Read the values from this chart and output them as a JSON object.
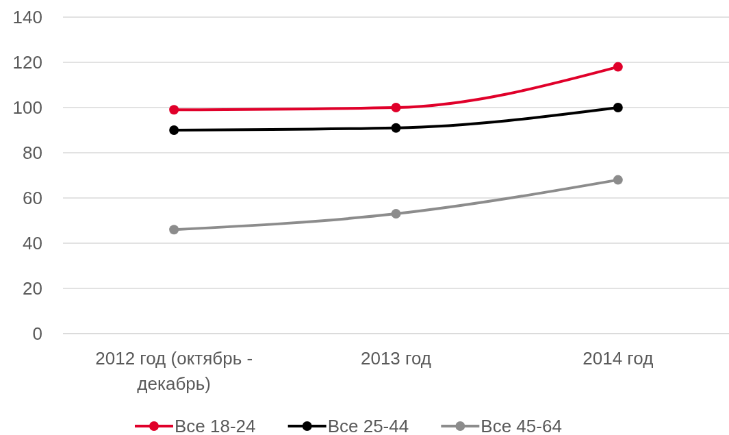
{
  "chart_data": {
    "type": "line",
    "categories": [
      "2012 год (октябрь - декабрь)",
      "2013 год",
      "2014 год"
    ],
    "series": [
      {
        "name": "Все 18-24",
        "color": "#e0002a",
        "values": [
          99,
          100,
          118
        ]
      },
      {
        "name": "Все 25-44",
        "color": "#000000",
        "values": [
          90,
          91,
          100
        ]
      },
      {
        "name": "Все 45-64",
        "color": "#8c8c8c",
        "values": [
          46,
          53,
          68
        ]
      }
    ],
    "ylim": [
      0,
      140
    ],
    "yticks": [
      0,
      20,
      40,
      60,
      80,
      100,
      120,
      140
    ],
    "grid": "y",
    "legend": "bottom",
    "marker": "circle",
    "line_style": "solid"
  }
}
